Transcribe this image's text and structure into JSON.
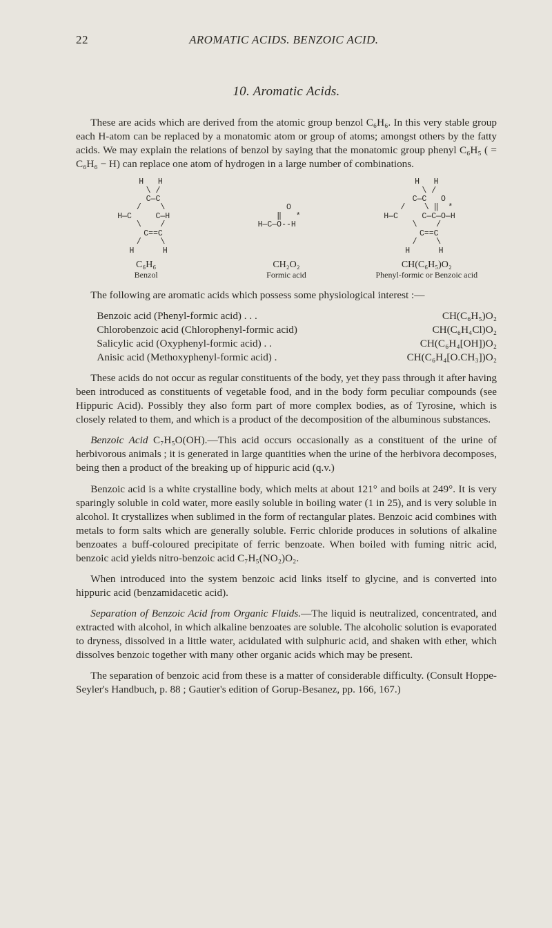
{
  "page_number": "22",
  "running_title": "AROMATIC ACIDS.  BENZOIC ACID.",
  "section_title": "10. Aromatic Acids.",
  "para1": "These are acids which are derived from the atomic group benzol C₆H₆. In this very stable group each H-atom can be replaced by a monatomic atom or group of atoms; amongst others by the fatty acids. We may explain the relations of benzol by saying that the monatomic group phenyl C₆H₅ ( = C₆H₆ − H) can replace one atom of hydrogen in a large number of combinations.",
  "diagramA": "   H   H\n    \\ /\n    C—C\n   /    \\\nH—C     C—H\n   \\    /\n    C==C\n   /    \\\n  H      H",
  "diagramB": "     O\n     ‖   *\nH—C—O--H",
  "diagramC": "   H   H\n    \\ /\n    C—C   O\n   /    \\ ‖  *\nH—C     C—C—O—H\n   \\    /\n    C==C\n   /    \\\n  H      H",
  "cap1_formula": "C₆H₆",
  "cap1_name": "Benzol",
  "cap2_formula": "CH₂O₂",
  "cap2_name": "Formic acid",
  "cap3_formula": "CH(C₆H₅)O₂",
  "cap3_name": "Phenyl-formic or Benzoic acid",
  "para2": "The following are aromatic acids which possess some physiological interest :—",
  "list": {
    "r1l": "Benzoic acid (Phenyl-formic acid)  .     .     .",
    "r1r": "CH(C₆H₅)O₂",
    "r2l": "Chlorobenzoic acid (Chlorophenyl-formic acid)",
    "r2r": "CH(C₆H₄Cl)O₂",
    "r3l": "Salicylic acid (Oxyphenyl-formic acid)  .     .",
    "r3r": "CH(C₆H₄[OH])O₂",
    "r4l": "Anisic acid (Methoxyphenyl-formic acid)   .",
    "r4r": "CH(C₆H₄[O.CH₃])O₂"
  },
  "para3": "These acids do not occur as regular constituents of the body, yet they pass through it after having been introduced as constituents of vegetable food, and in the body form peculiar compounds (see Hippuric Acid). Possibly they also form part of more complex bodies, as of Tyrosine, which is closely related to them, and which is a product of the decomposition of the albuminous substances.",
  "para4_lead": "Benzoic Acid",
  "para4": " C₇H₅O(OH).—This acid occurs occasionally as a constituent of the urine of herbivorous animals ; it is generated in large quantities when the urine of the herbivora decomposes, being then a product of the breaking up of hippuric acid (q.v.)",
  "para5": "Benzoic acid is a white crystalline body, which melts at about 121° and boils at 249°. It is very sparingly soluble in cold water, more easily soluble in boiling water (1 in 25), and is very soluble in alcohol. It crystallizes when sublimed in the form of rectangular plates. Benzoic acid combines with metals to form salts which are generally soluble. Ferric chloride produces in solutions of alkaline benzoates a buff-coloured precipitate of ferric benzoate. When boiled with fuming nitric acid, benzoic acid yields nitro-benzoic acid C₇H₅(NO₂)O₂.",
  "para6": "When introduced into the system benzoic acid links itself to glycine, and is converted into hippuric acid (benzamidacetic acid).",
  "para7_lead": "Separation of Benzoic Acid from Organic Fluids.",
  "para7": "—The liquid is neutralized, concentrated, and extracted with alcohol, in which alkaline benzoates are soluble. The alcoholic solution is evaporated to dryness, dissolved in a little water, acidulated with sulphuric acid, and shaken with ether, which dissolves benzoic together with many other organic acids which may be present.",
  "para8": "The separation of benzoic acid from these is a matter of considerable difficulty. (Consult Hoppe-Seyler's Handbuch, p. 88 ; Gautier's edition of Gorup-Besanez, pp. 166, 167.)",
  "colors": {
    "background": "#e8e5de",
    "text": "#2a2823"
  },
  "typography": {
    "body_fontsize_pt": 11.4,
    "title_fontsize_pt": 14,
    "header_fontsize_pt": 12.5
  }
}
